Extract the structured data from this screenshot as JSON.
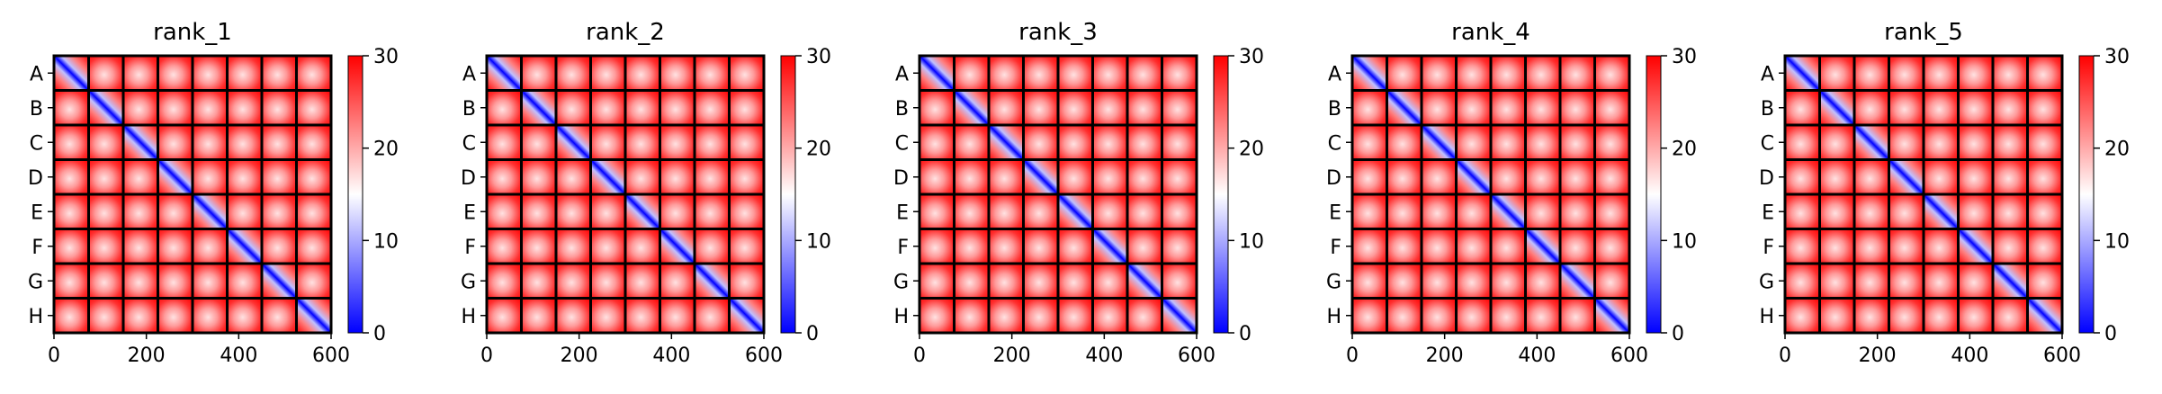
{
  "colors": {
    "cmap_low": "#0000ff",
    "cmap_mid": "#ffffff",
    "cmap_high": "#ff0000",
    "block_border": "#000000",
    "background": "#ffffff"
  },
  "chart_data": [
    {
      "type": "heatmap",
      "title": "rank_1",
      "row_labels": [
        "A",
        "B",
        "C",
        "D",
        "E",
        "F",
        "G",
        "H"
      ],
      "x_ticks": [
        0,
        200,
        400,
        600
      ],
      "xlim": [
        0,
        600
      ],
      "block_grid": [
        8,
        8
      ],
      "colorbar": {
        "min": 0,
        "max": 30,
        "ticks": [
          0,
          10,
          20,
          30
        ],
        "labels": [
          "0",
          "10",
          "20",
          "30"
        ]
      },
      "diagonal_value": 0,
      "background_value": 30
    },
    {
      "type": "heatmap",
      "title": "rank_2",
      "row_labels": [
        "A",
        "B",
        "C",
        "D",
        "E",
        "F",
        "G",
        "H"
      ],
      "x_ticks": [
        0,
        200,
        400,
        600
      ],
      "xlim": [
        0,
        600
      ],
      "block_grid": [
        8,
        8
      ],
      "colorbar": {
        "min": 0,
        "max": 30,
        "ticks": [
          0,
          10,
          20,
          30
        ],
        "labels": [
          "0",
          "10",
          "20",
          "30"
        ]
      },
      "diagonal_value": 0,
      "background_value": 30
    },
    {
      "type": "heatmap",
      "title": "rank_3",
      "row_labels": [
        "A",
        "B",
        "C",
        "D",
        "E",
        "F",
        "G",
        "H"
      ],
      "x_ticks": [
        0,
        200,
        400,
        600
      ],
      "xlim": [
        0,
        600
      ],
      "block_grid": [
        8,
        8
      ],
      "colorbar": {
        "min": 0,
        "max": 30,
        "ticks": [
          0,
          10,
          20,
          30
        ],
        "labels": [
          "0",
          "10",
          "20",
          "30"
        ]
      },
      "diagonal_value": 0,
      "background_value": 30
    },
    {
      "type": "heatmap",
      "title": "rank_4",
      "row_labels": [
        "A",
        "B",
        "C",
        "D",
        "E",
        "F",
        "G",
        "H"
      ],
      "x_ticks": [
        0,
        200,
        400,
        600
      ],
      "xlim": [
        0,
        600
      ],
      "block_grid": [
        8,
        8
      ],
      "colorbar": {
        "min": 0,
        "max": 30,
        "ticks": [
          0,
          10,
          20,
          30
        ],
        "labels": [
          "0",
          "10",
          "20",
          "30"
        ]
      },
      "diagonal_value": 0,
      "background_value": 30
    },
    {
      "type": "heatmap",
      "title": "rank_5",
      "row_labels": [
        "A",
        "B",
        "C",
        "D",
        "E",
        "F",
        "G",
        "H"
      ],
      "x_ticks": [
        0,
        200,
        400,
        600
      ],
      "xlim": [
        0,
        600
      ],
      "block_grid": [
        8,
        8
      ],
      "colorbar": {
        "min": 0,
        "max": 30,
        "ticks": [
          0,
          10,
          20,
          30
        ],
        "labels": [
          "0",
          "10",
          "20",
          "30"
        ]
      },
      "diagonal_value": 0,
      "background_value": 30
    }
  ]
}
